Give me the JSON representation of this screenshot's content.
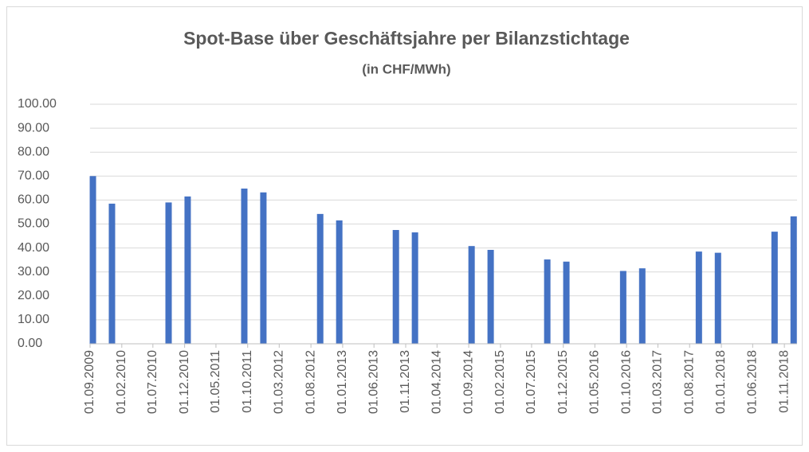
{
  "chart_data": {
    "type": "bar",
    "title": "Spot-Base über Geschäftsjahre per Bilanzstichtage",
    "subtitle": "(in CHF/MWh)",
    "x": [
      "30.09.2009",
      "31.12.2009",
      "30.09.2010",
      "31.12.2010",
      "30.09.2011",
      "31.12.2011",
      "30.09.2012",
      "31.12.2012",
      "30.09.2013",
      "31.12.2013",
      "30.09.2014",
      "31.12.2014",
      "30.09.2015",
      "31.12.2015",
      "30.09.2016",
      "31.12.2016",
      "30.09.2017",
      "31.12.2017",
      "30.09.2018",
      "31.12.2018"
    ],
    "values": [
      70.0,
      58.5,
      59.0,
      61.5,
      64.8,
      63.2,
      54.2,
      51.5,
      47.5,
      46.5,
      40.8,
      39.2,
      35.2,
      34.3,
      30.4,
      31.5,
      38.5,
      38.0,
      46.8,
      53.2
    ],
    "color": "#4472c4",
    "xlim": [
      "01.09.2009",
      "01.01.2019"
    ],
    "xticks": [
      "01.09.2009",
      "01.02.2010",
      "01.07.2010",
      "01.12.2010",
      "01.05.2011",
      "01.10.2011",
      "01.03.2012",
      "01.08.2012",
      "01.01.2013",
      "01.06.2013",
      "01.11.2013",
      "01.04.2014",
      "01.09.2014",
      "01.02.2015",
      "01.07.2015",
      "01.12.2015",
      "01.05.2016",
      "01.10.2016",
      "01.03.2017",
      "01.08.2017",
      "01.01.2018",
      "01.06.2018",
      "01.11.2018"
    ],
    "ylim": [
      0,
      100
    ],
    "yticks": [
      {
        "value": 0,
        "label": "0.00"
      },
      {
        "value": 10,
        "label": "10.00"
      },
      {
        "value": 20,
        "label": "20.00"
      },
      {
        "value": 30,
        "label": "30.00"
      },
      {
        "value": 40,
        "label": "40.00"
      },
      {
        "value": 50,
        "label": "50.00"
      },
      {
        "value": 60,
        "label": "60.00"
      },
      {
        "value": 70,
        "label": "70.00"
      },
      {
        "value": 80,
        "label": "80.00"
      },
      {
        "value": 90,
        "label": "90.00"
      },
      {
        "value": 100,
        "label": "100.00"
      }
    ],
    "grid": true
  }
}
